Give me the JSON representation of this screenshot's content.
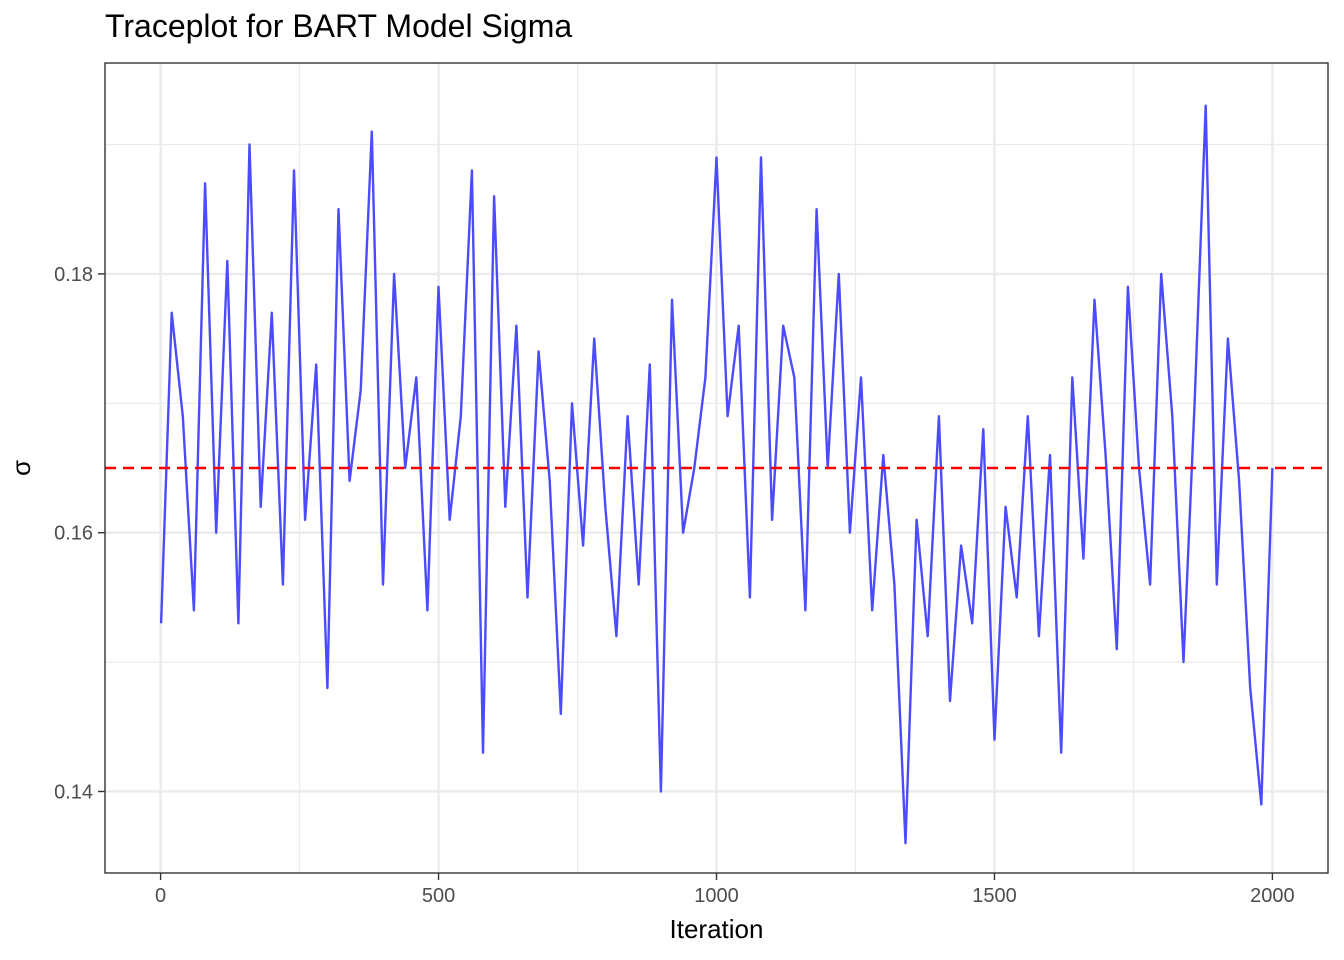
{
  "chart_data": {
    "type": "line",
    "title": "Traceplot for BART Model Sigma",
    "xlabel": "Iteration",
    "ylabel": "σ",
    "xlim": [
      -100,
      2100
    ],
    "ylim": [
      0.1337,
      0.1963
    ],
    "x_ticks": [
      0,
      500,
      1000,
      1500,
      2000
    ],
    "x_tick_labels": [
      "0",
      "500",
      "1000",
      "1500",
      "2000"
    ],
    "y_ticks": [
      0.14,
      0.16,
      0.18
    ],
    "y_tick_labels": [
      "0.14",
      "0.16",
      "0.18"
    ],
    "grid": true,
    "legend": "none",
    "reference_line": {
      "y": 0.165,
      "color": "#ff0000",
      "style": "dashed"
    },
    "series": [
      {
        "color": "#4b4bff",
        "x": [
          1,
          20,
          40,
          60,
          80,
          100,
          120,
          140,
          160,
          180,
          200,
          220,
          240,
          260,
          280,
          300,
          320,
          340,
          360,
          380,
          400,
          420,
          440,
          460,
          480,
          500,
          520,
          540,
          560,
          580,
          600,
          620,
          640,
          660,
          680,
          700,
          720,
          740,
          760,
          780,
          800,
          820,
          840,
          860,
          880,
          900,
          920,
          940,
          960,
          980,
          1000,
          1020,
          1040,
          1060,
          1080,
          1100,
          1120,
          1140,
          1160,
          1180,
          1200,
          1220,
          1240,
          1260,
          1280,
          1300,
          1320,
          1340,
          1360,
          1380,
          1400,
          1420,
          1440,
          1460,
          1480,
          1500,
          1520,
          1540,
          1560,
          1580,
          1600,
          1620,
          1640,
          1660,
          1680,
          1700,
          1720,
          1740,
          1760,
          1780,
          1800,
          1820,
          1840,
          1860,
          1880,
          1900,
          1920,
          1940,
          1960,
          1980,
          2000
        ],
        "y": [
          0.153,
          0.177,
          0.169,
          0.154,
          0.187,
          0.16,
          0.181,
          0.153,
          0.19,
          0.162,
          0.177,
          0.156,
          0.188,
          0.161,
          0.173,
          0.148,
          0.185,
          0.164,
          0.171,
          0.191,
          0.156,
          0.18,
          0.165,
          0.172,
          0.154,
          0.179,
          0.161,
          0.169,
          0.188,
          0.143,
          0.186,
          0.162,
          0.176,
          0.155,
          0.174,
          0.164,
          0.146,
          0.17,
          0.159,
          0.175,
          0.162,
          0.152,
          0.169,
          0.156,
          0.173,
          0.14,
          0.178,
          0.16,
          0.165,
          0.172,
          0.189,
          0.169,
          0.176,
          0.155,
          0.189,
          0.161,
          0.176,
          0.172,
          0.154,
          0.185,
          0.165,
          0.18,
          0.16,
          0.172,
          0.154,
          0.166,
          0.156,
          0.136,
          0.161,
          0.152,
          0.169,
          0.147,
          0.159,
          0.153,
          0.168,
          0.144,
          0.162,
          0.155,
          0.169,
          0.152,
          0.166,
          0.143,
          0.172,
          0.158,
          0.178,
          0.166,
          0.151,
          0.179,
          0.165,
          0.156,
          0.18,
          0.169,
          0.15,
          0.17,
          0.193,
          0.156,
          0.175,
          0.164,
          0.148,
          0.139,
          0.165
        ]
      }
    ]
  }
}
